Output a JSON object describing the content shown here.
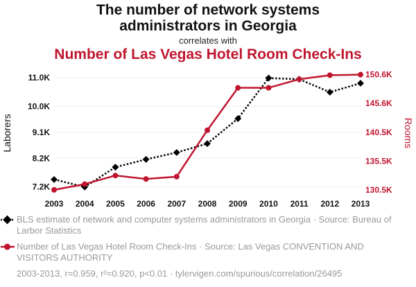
{
  "title_line1": "The number of network systems",
  "title_line2": "administrators in Georgia",
  "correlates_text": "correlates with",
  "subtitle": "Number of Las Vegas Hotel Room Check-Ins",
  "colors": {
    "series1": "#000000",
    "series2": "#c0152f",
    "grid": "#eeeeee",
    "muted": "#999999"
  },
  "legend": {
    "series1_text": "BLS estimate of network and computer systems administrators in Georgia · Source: Bureau of Larbor Statistics",
    "series2_text": "Number of Las Vegas Hotel Room Check-Ins · Source: Las Vegas CONVENTION AND VISITORS AUTHORITY"
  },
  "footer": "2003-2013, r=0.959, r²=0.920, p<0.01 · tylervigen.com/spurious/correlation/26495",
  "chart_data": {
    "type": "line",
    "x": [
      2003,
      2004,
      2005,
      2006,
      2007,
      2008,
      2009,
      2010,
      2011,
      2012,
      2013
    ],
    "x_tick_labels": [
      "2003",
      "2004",
      "2005",
      "2006",
      "2007",
      "2008",
      "2009",
      "2010",
      "2011",
      "2012",
      "2013"
    ],
    "left_axis": {
      "label": "Laborers",
      "ylim": [
        7000,
        11150
      ],
      "ticks": [
        7200,
        8200,
        9100,
        10000,
        11000
      ],
      "tick_labels": [
        "7.2K",
        "8.2K",
        "9.1K",
        "10.0K",
        "11.0K"
      ]
    },
    "right_axis": {
      "label": "Rooms",
      "ylim": [
        130000,
        150800
      ],
      "ticks": [
        130500,
        135500,
        140500,
        145600,
        150600
      ],
      "tick_labels": [
        "130.5K",
        "135.5K",
        "140.5K",
        "145.6K",
        "150.6K"
      ]
    },
    "series": [
      {
        "name": "BLS estimate of network and computer systems administrators in Georgia",
        "axis": "left",
        "style": "dotted",
        "marker": "diamond",
        "values": [
          7460,
          7200,
          7890,
          8160,
          8400,
          8710,
          9580,
          10990,
          10950,
          10500,
          10810
        ]
      },
      {
        "name": "Number of Las Vegas Hotel Room Check-Ins",
        "axis": "right",
        "style": "solid",
        "marker": "circle",
        "values": [
          130500,
          131500,
          133000,
          132400,
          132800,
          140900,
          148300,
          148300,
          149800,
          150500,
          150600
        ]
      }
    ],
    "grid": true
  }
}
